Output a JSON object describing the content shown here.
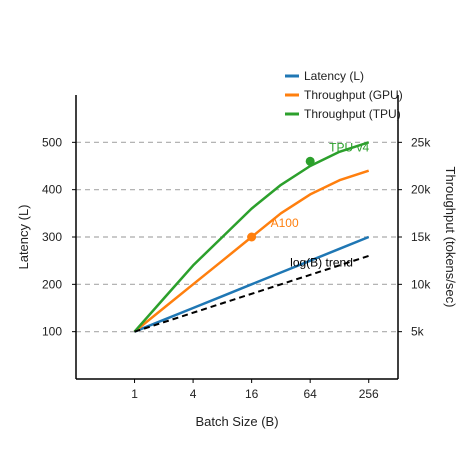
{
  "chart_data": {
    "type": "line",
    "title": "",
    "xlabel": "Batch Size (B)",
    "ylabel": "Latency (L)",
    "y2label": "Throughput (tokens/sec)",
    "x_scale": "log2",
    "x_ticks": [
      1,
      4,
      16,
      64,
      256
    ],
    "x_tick_labels": [
      "1",
      "4",
      "16",
      "64",
      "256"
    ],
    "xlim": [
      0.25,
      512
    ],
    "ylim": [
      0,
      600
    ],
    "y_ticks": [
      100,
      200,
      300,
      400,
      500
    ],
    "y_tick_labels": [
      "100",
      "200",
      "300",
      "400",
      "500"
    ],
    "y2lim": [
      0,
      30000
    ],
    "y2_ticks": [
      5000,
      10000,
      15000,
      20000,
      25000
    ],
    "y2_tick_labels": [
      "5k",
      "10k",
      "15k",
      "20k",
      "25k"
    ],
    "grid": "horizontal dashed",
    "legend_position": "top-right",
    "series": [
      {
        "name": "Latency (L)",
        "axis": "left",
        "color": "#1f77b4",
        "x": [
          1,
          2,
          4,
          8,
          16,
          32,
          64,
          128,
          256
        ],
        "values": [
          100,
          125,
          150,
          175,
          200,
          225,
          250,
          275,
          300
        ]
      },
      {
        "name": "Throughput (GPU)",
        "axis": "right",
        "color": "#ff7f0e",
        "x": [
          1,
          2,
          4,
          8,
          16,
          32,
          64,
          128,
          256
        ],
        "values": [
          5000,
          7500,
          10000,
          12500,
          15000,
          17500,
          19500,
          21000,
          22000
        ]
      },
      {
        "name": "Throughput (TPU)",
        "axis": "right",
        "color": "#2ca02c",
        "x": [
          1,
          2,
          4,
          8,
          16,
          32,
          64,
          128,
          256
        ],
        "values": [
          5000,
          8500,
          12000,
          15000,
          18000,
          20500,
          22500,
          24000,
          25000
        ]
      }
    ],
    "trend": {
      "label": "log(B) trend",
      "color": "#000000",
      "x": [
        1,
        256
      ],
      "values": [
        100,
        260
      ]
    },
    "annotations": [
      {
        "text": "A100",
        "x": 16,
        "y": 15000,
        "axis": "right",
        "color": "#ff7f0e"
      },
      {
        "text": "TPU v4",
        "x": 64,
        "y": 23000,
        "axis": "right",
        "color": "#2ca02c"
      }
    ]
  }
}
